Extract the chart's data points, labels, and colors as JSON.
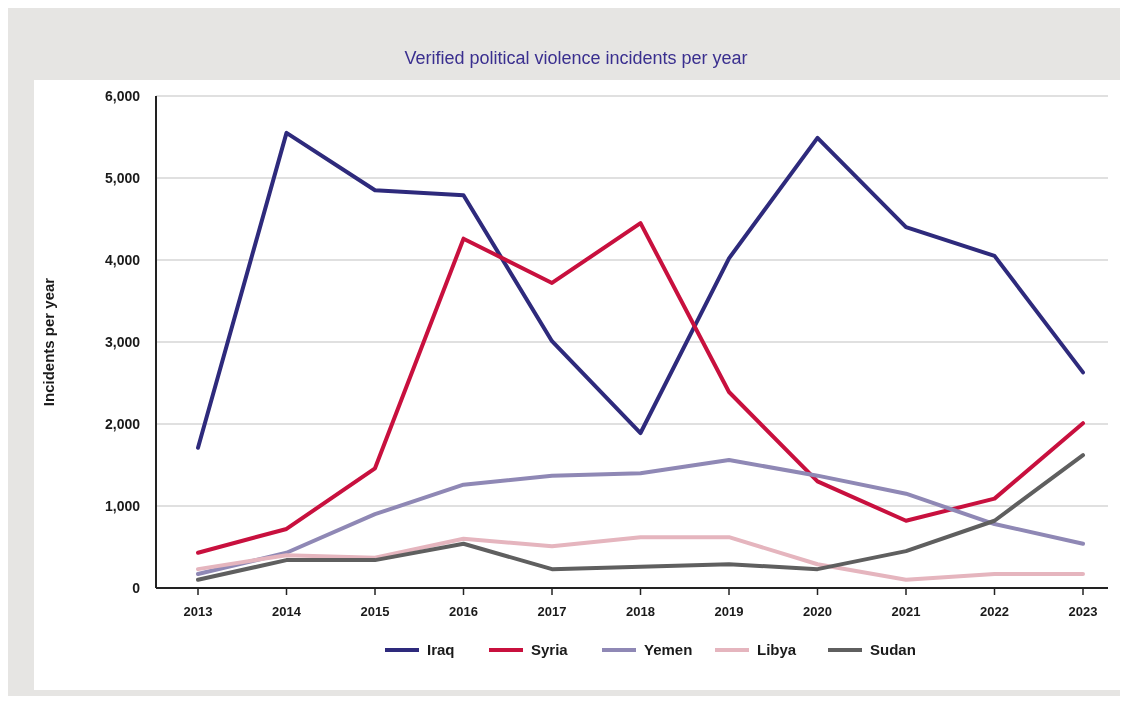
{
  "chart_data": {
    "type": "line",
    "title": "Verified political violence incidents per year",
    "ylabel": "Incidents per year",
    "categories": [
      "2013",
      "2014",
      "2015",
      "2016",
      "2017",
      "2018",
      "2019",
      "2020",
      "2021",
      "2022",
      "2023"
    ],
    "series": [
      {
        "name": "Iraq",
        "color": "#2e2a7c",
        "values": [
          1710,
          5550,
          4850,
          4790,
          3010,
          1890,
          4020,
          5490,
          4400,
          4050,
          2630
        ]
      },
      {
        "name": "Syria",
        "color": "#c8103e",
        "values": [
          430,
          720,
          1460,
          4260,
          3720,
          4450,
          2390,
          1300,
          820,
          1090,
          2010
        ]
      },
      {
        "name": "Yemen",
        "color": "#8f88b5",
        "values": [
          170,
          430,
          900,
          1260,
          1370,
          1400,
          1560,
          1370,
          1150,
          780,
          540
        ]
      },
      {
        "name": "Libya",
        "color": "#e5b5be",
        "values": [
          230,
          400,
          370,
          600,
          510,
          620,
          620,
          290,
          100,
          170,
          170
        ]
      },
      {
        "name": "Sudan",
        "color": "#5f5f5f",
        "values": [
          100,
          340,
          340,
          540,
          230,
          260,
          290,
          230,
          450,
          820,
          1620
        ]
      }
    ],
    "ylim": [
      0,
      6000
    ],
    "yticks": [
      0,
      {
        "value": 1000,
        "label": "1,000"
      },
      {
        "value": 2000,
        "label": "2,000"
      },
      {
        "value": 3000,
        "label": "3,000"
      },
      {
        "value": 4000,
        "label": "4,000"
      },
      {
        "value": 5000,
        "label": "5,000"
      },
      {
        "value": 6000,
        "label": "6,000"
      }
    ],
    "grid": "y",
    "legend": "bottom",
    "marker": "none",
    "line_style": "solid"
  }
}
